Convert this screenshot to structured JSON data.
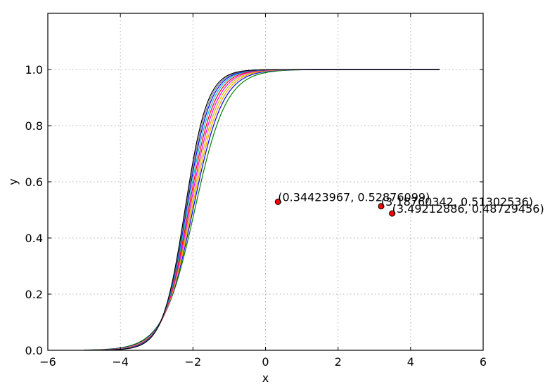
{
  "chart_data": {
    "type": "line",
    "xlabel": "x",
    "ylabel": "y",
    "xlim": [
      -6,
      6
    ],
    "ylim": [
      0,
      1.2
    ],
    "xticks": [
      -6,
      -4,
      -2,
      0,
      2,
      4,
      6
    ],
    "xtick_labels": [
      "−6",
      "−4",
      "−2",
      "0",
      "2",
      "4",
      "6"
    ],
    "yticks": [
      0.0,
      0.2,
      0.4,
      0.6,
      0.8,
      1.0
    ],
    "ytick_labels": [
      "0.0",
      "0.2",
      "0.4",
      "0.6",
      "0.8",
      "1.0"
    ],
    "grid": true,
    "curve_x_range": [
      -5,
      4.8
    ],
    "series": [
      {
        "color": "#008000",
        "params": {
          "k": 2.3,
          "x0": -1.95
        }
      },
      {
        "color": "#0000ff",
        "params": {
          "k": 2.45,
          "x0": -2.0
        }
      },
      {
        "color": "#ff9e00",
        "params": {
          "k": 2.55,
          "x0": -2.03
        }
      },
      {
        "color": "#bfbf00",
        "params": {
          "k": 2.65,
          "x0": -2.06
        }
      },
      {
        "color": "#ff00ff",
        "params": {
          "k": 2.75,
          "x0": -2.09
        }
      },
      {
        "color": "#ff0000",
        "params": {
          "k": 2.85,
          "x0": -2.12
        }
      },
      {
        "color": "#00bfbf",
        "params": {
          "k": 2.95,
          "x0": -2.15
        }
      },
      {
        "color": "#0000ff",
        "params": {
          "k": 3.05,
          "x0": -2.18
        }
      },
      {
        "color": "#808080",
        "params": {
          "k": 3.15,
          "x0": -2.2
        }
      },
      {
        "color": "#000000",
        "params": {
          "k": 3.25,
          "x0": -2.22
        }
      }
    ],
    "points": [
      {
        "x": 0.34423967,
        "y": 0.52876099,
        "label": "(0.34423967, 0.52876099)"
      },
      {
        "x": 3.18760342,
        "y": 0.51302536,
        "label": "(3.18760342, 0.51302536)"
      },
      {
        "x": 3.49212886,
        "y": 0.48729456,
        "label": "(3.49212886, 0.48729456)"
      }
    ],
    "point_color": "#ff0000"
  }
}
